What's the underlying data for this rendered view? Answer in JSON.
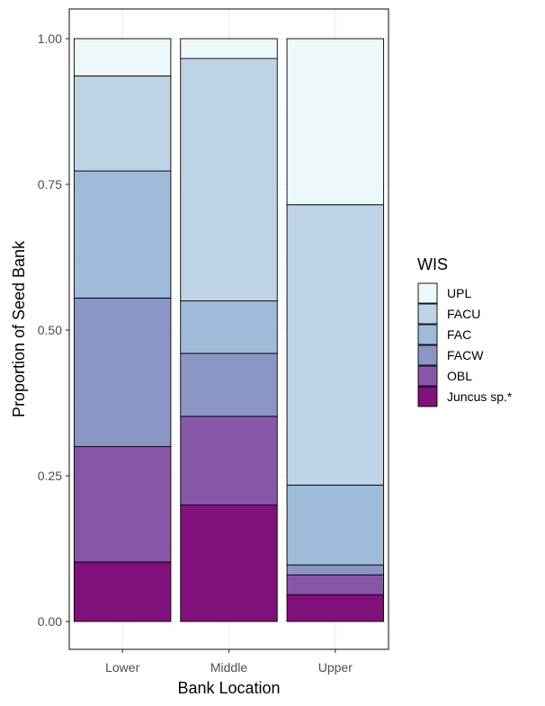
{
  "chart_data": {
    "type": "bar",
    "stacked": true,
    "categories": [
      "Lower",
      "Middle",
      "Upper"
    ],
    "xlabel": "Bank Location",
    "ylabel": "Proportion of Seed Bank",
    "ylim": [
      0,
      1
    ],
    "yticks": [
      0.0,
      0.25,
      0.5,
      0.75,
      1.0
    ],
    "ytick_labels": [
      "0.00",
      "0.25",
      "0.50",
      "0.75",
      "1.00"
    ],
    "grid": true,
    "legend": {
      "title": "WIS",
      "position": "right"
    },
    "series": [
      {
        "name": "Juncus sp.*",
        "color": "#810F7C",
        "values": [
          0.102,
          0.2,
          0.046
        ]
      },
      {
        "name": "OBL",
        "color": "#8856A7",
        "values": [
          0.198,
          0.152,
          0.034
        ]
      },
      {
        "name": "FACW",
        "color": "#8C96C6",
        "values": [
          0.255,
          0.108,
          0.017
        ]
      },
      {
        "name": "FAC",
        "color": "#9EBCDA",
        "values": [
          0.218,
          0.09,
          0.137
        ]
      },
      {
        "name": "FACU",
        "color": "#BFD3E6",
        "values": [
          0.163,
          0.416,
          0.481
        ]
      },
      {
        "name": "UPL",
        "color": "#EDF8FB",
        "values": [
          0.064,
          0.034,
          0.285
        ]
      }
    ]
  }
}
